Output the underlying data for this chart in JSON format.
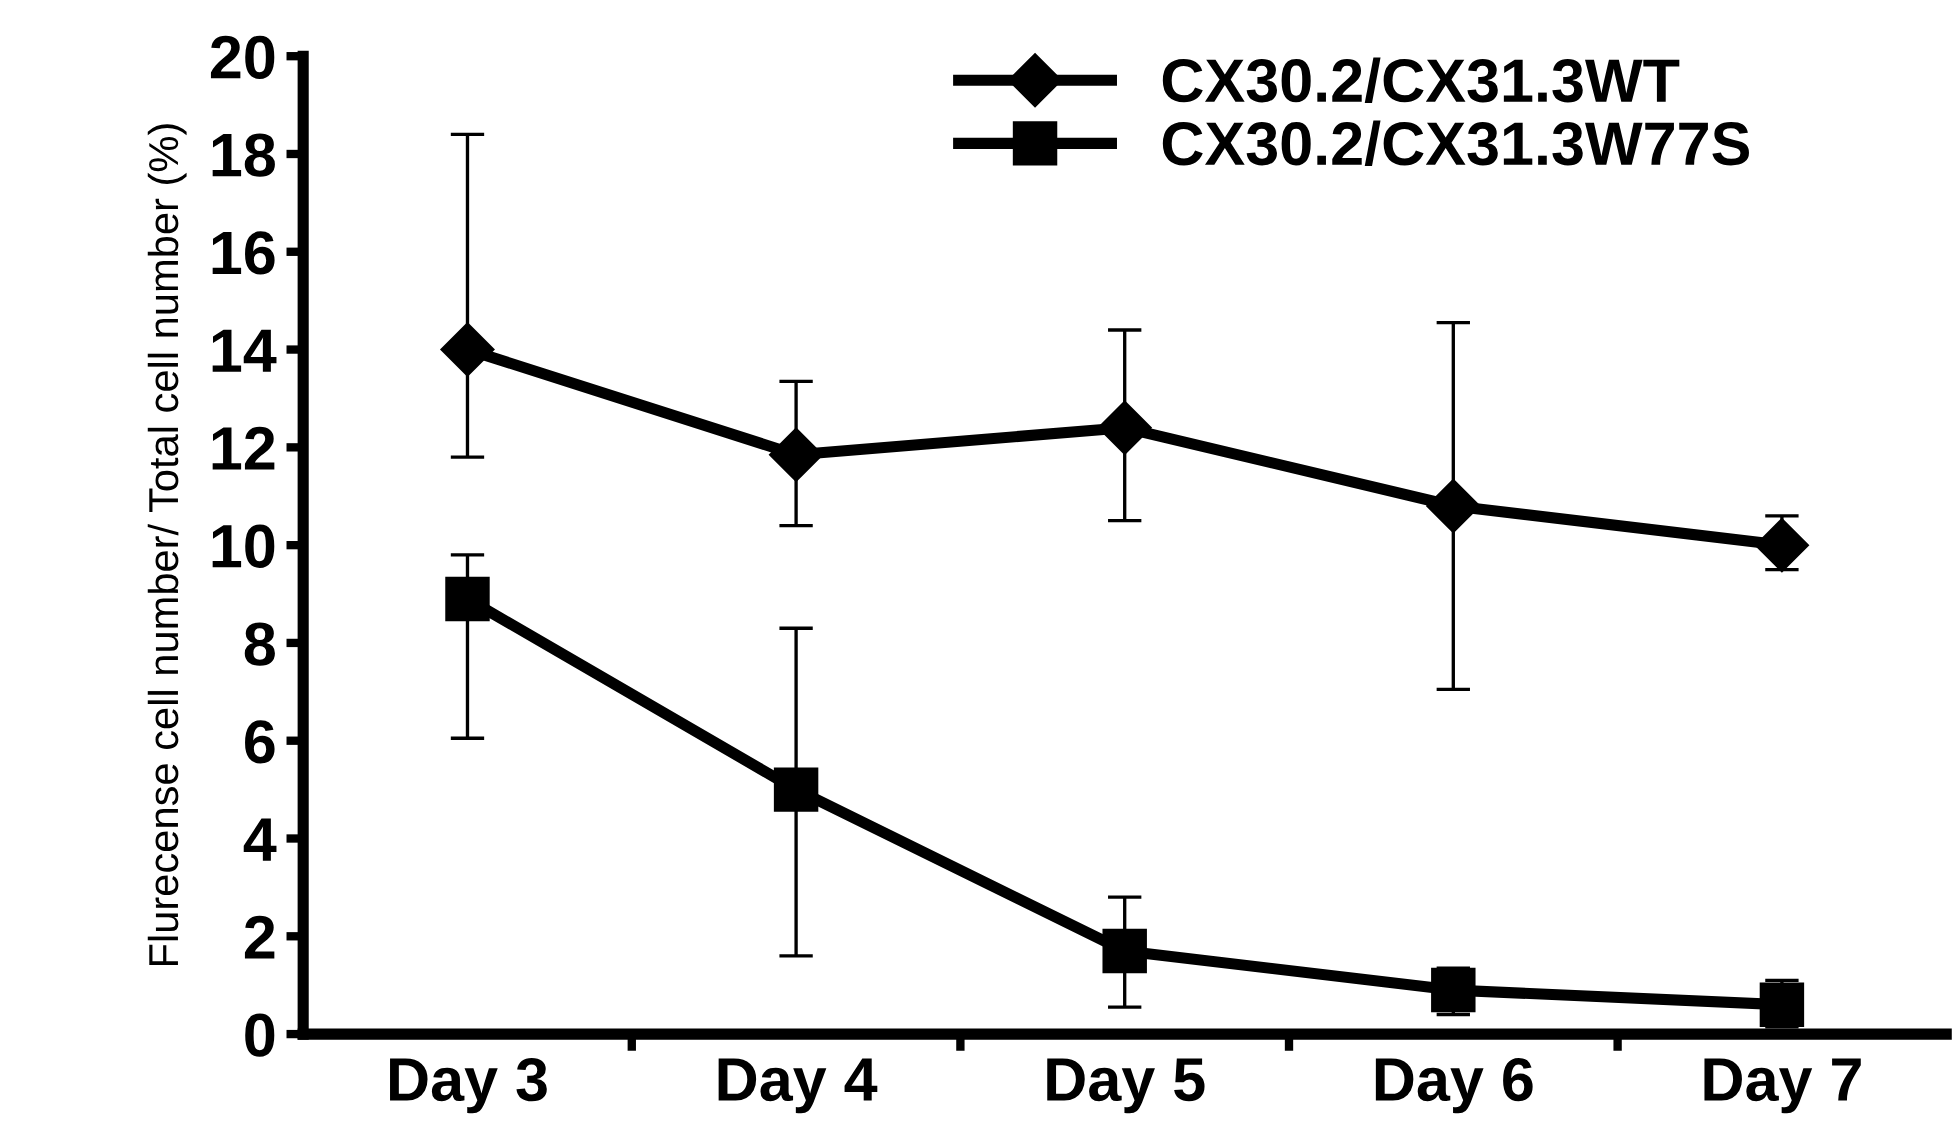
{
  "chart_data": {
    "type": "line",
    "ylabel": "Flurecense cell number/ Total cell number (%)",
    "categories": [
      "Day 3",
      "Day 4",
      "Day 5",
      "Day 6",
      "Day 7"
    ],
    "series": [
      {
        "name": "CX30.2/CX31.3WT",
        "color": "#000000",
        "marker": "diamond",
        "values": [
          14.0,
          11.85,
          12.4,
          10.8,
          10.0
        ],
        "errors": [
          [
            11.8,
            18.4
          ],
          [
            10.4,
            13.35
          ],
          [
            10.5,
            14.4
          ],
          [
            7.05,
            14.55
          ],
          [
            9.5,
            10.6
          ]
        ]
      },
      {
        "name": "CX30.2/CX31.3W77S",
        "color": "#000000",
        "marker": "square",
        "values": [
          8.9,
          5.0,
          1.7,
          0.9,
          0.6
        ],
        "errors": [
          [
            6.05,
            9.8
          ],
          [
            1.6,
            8.3
          ],
          [
            0.55,
            2.8
          ],
          [
            0.4,
            1.35
          ],
          [
            0.15,
            1.1
          ]
        ]
      }
    ],
    "ylim": [
      0,
      20
    ],
    "yticks": [
      0,
      2,
      4,
      6,
      8,
      10,
      12,
      14,
      16,
      18,
      20
    ],
    "grid": false,
    "legend": "top right",
    "line_style": "solid"
  }
}
